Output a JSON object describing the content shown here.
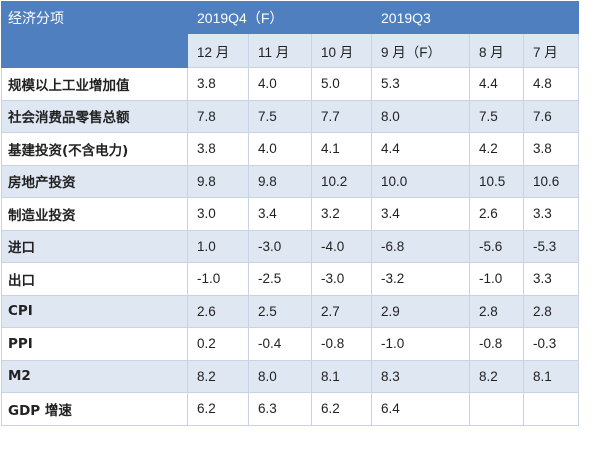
{
  "header": {
    "corner_label": "经济分项",
    "groups": [
      "2019Q4（F）",
      "2019Q3"
    ],
    "months": [
      "12 月",
      "11 月",
      "10 月",
      "9 月（F）",
      "8 月",
      "7 月"
    ]
  },
  "rows": [
    {
      "label": "规模以上工业增加值",
      "values": [
        "3.8",
        "4.0",
        "5.0",
        "5.3",
        "4.4",
        "4.8"
      ]
    },
    {
      "label": "社会消费品零售总额",
      "values": [
        "7.8",
        "7.5",
        "7.7",
        "8.0",
        "7.5",
        "7.6"
      ]
    },
    {
      "label": "基建投资(不含电力)",
      "values": [
        "3.8",
        "4.0",
        "4.1",
        "4.4",
        "4.2",
        "3.8"
      ]
    },
    {
      "label": "房地产投资",
      "values": [
        "9.8",
        "9.8",
        "10.2",
        "10.0",
        "10.5",
        "10.6"
      ]
    },
    {
      "label": "制造业投资",
      "values": [
        "3.0",
        "3.4",
        "3.2",
        "3.4",
        "2.6",
        "3.3"
      ]
    },
    {
      "label": "进口",
      "values": [
        "1.0",
        "-3.0",
        "-4.0",
        "-6.8",
        "-5.6",
        "-5.3"
      ]
    },
    {
      "label": "出口",
      "values": [
        "-1.0",
        "-2.5",
        "-3.0",
        "-3.2",
        "-1.0",
        "3.3"
      ]
    },
    {
      "label": "CPI",
      "values": [
        "2.6",
        "2.5",
        "2.7",
        "2.9",
        "2.8",
        "2.8"
      ]
    },
    {
      "label": "PPI",
      "values": [
        "0.2",
        "-0.4",
        "-0.8",
        "-1.0",
        "-0.8",
        "-0.3"
      ]
    },
    {
      "label": "M2",
      "values": [
        "8.2",
        "8.0",
        "8.1",
        "8.3",
        "8.2",
        "8.1"
      ]
    },
    {
      "label": "GDP 增速",
      "values": [
        "6.2",
        "6.3",
        "6.2",
        "6.4",
        "",
        ""
      ]
    }
  ]
}
